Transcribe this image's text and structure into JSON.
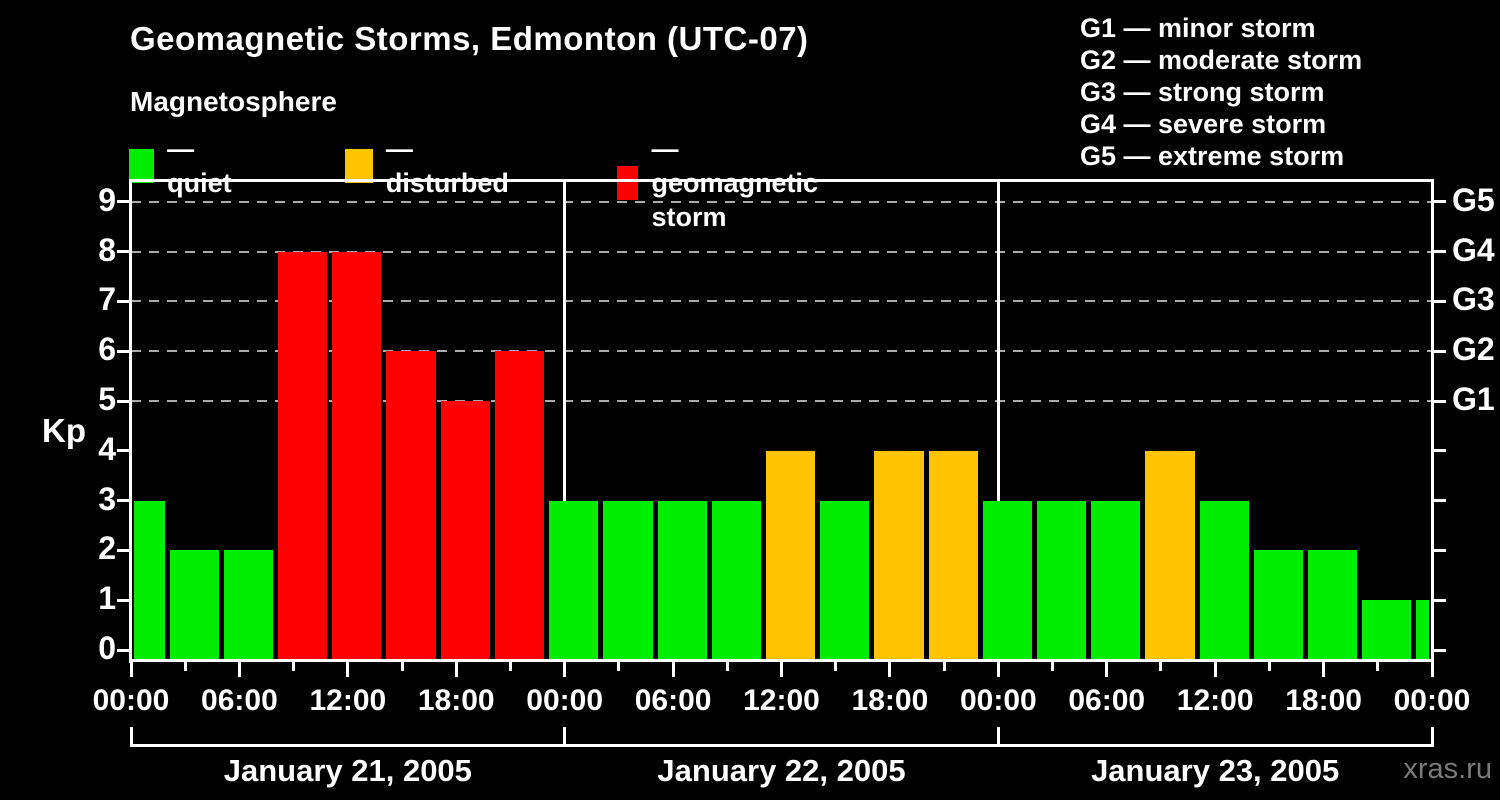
{
  "watermark": "xras.ru",
  "colors": {
    "quiet": "#00ec00",
    "disturbed": "#ffc400",
    "storm": "#ff0000",
    "axis": "#ffffff",
    "grid": "#aaaaaa",
    "background": "#000000",
    "watermark_color": "#7a7a7a"
  },
  "legend": {
    "items": [
      {
        "status": "quiet",
        "label": "— quiet"
      },
      {
        "status": "disturbed",
        "label": "— disturbed"
      },
      {
        "status": "storm",
        "label": "— geomagnetic storm"
      }
    ]
  },
  "g_legend": {
    "items": [
      {
        "code": "G1",
        "text": "G1 — minor storm"
      },
      {
        "code": "G2",
        "text": "G2 — moderate storm"
      },
      {
        "code": "G3",
        "text": "G3 — strong storm"
      },
      {
        "code": "G4",
        "text": "G4 — severe storm"
      },
      {
        "code": "G5",
        "text": "G5 — extreme storm"
      }
    ]
  },
  "chart_data": {
    "type": "bar",
    "title": "Geomagnetic Storms, Edmonton (UTC-07)",
    "subtitle": "Magnetosphere",
    "ylabel": "Kp",
    "ylim": [
      0,
      9
    ],
    "yticks": [
      0,
      1,
      2,
      3,
      4,
      5,
      6,
      7,
      8,
      9
    ],
    "grid": "dashed horizontal lines at Kp 5..9 only",
    "legend_position": "top",
    "x_hours_total": 72,
    "x_tick_step_hours": 3,
    "x_label_step_hours": 6,
    "x_labels": [
      "00:00",
      "06:00",
      "12:00",
      "18:00",
      "00:00",
      "06:00",
      "12:00",
      "18:00",
      "00:00",
      "06:00",
      "12:00",
      "18:00",
      "00:00"
    ],
    "day_boundaries_hours": [
      24,
      48
    ],
    "days": [
      {
        "label": "January 21, 2005"
      },
      {
        "label": "January 22, 2005"
      },
      {
        "label": "January 23, 2005"
      }
    ],
    "g_scale": [
      {
        "code": "G1",
        "kp": 5
      },
      {
        "code": "G2",
        "kp": 6
      },
      {
        "code": "G3",
        "kp": 7
      },
      {
        "code": "G4",
        "kp": 8
      },
      {
        "code": "G5",
        "kp": 9
      }
    ],
    "bars": [
      {
        "start_hour": -1,
        "duration_hours": 3,
        "kp": 3,
        "status": "quiet"
      },
      {
        "start_hour": 2,
        "duration_hours": 3,
        "kp": 2,
        "status": "quiet"
      },
      {
        "start_hour": 5,
        "duration_hours": 3,
        "kp": 2,
        "status": "quiet"
      },
      {
        "start_hour": 8,
        "duration_hours": 3,
        "kp": 8,
        "status": "storm"
      },
      {
        "start_hour": 11,
        "duration_hours": 3,
        "kp": 8,
        "status": "storm"
      },
      {
        "start_hour": 14,
        "duration_hours": 3,
        "kp": 6,
        "status": "storm"
      },
      {
        "start_hour": 17,
        "duration_hours": 3,
        "kp": 5,
        "status": "storm"
      },
      {
        "start_hour": 20,
        "duration_hours": 3,
        "kp": 6,
        "status": "storm"
      },
      {
        "start_hour": 23,
        "duration_hours": 3,
        "kp": 3,
        "status": "quiet"
      },
      {
        "start_hour": 26,
        "duration_hours": 3,
        "kp": 3,
        "status": "quiet"
      },
      {
        "start_hour": 29,
        "duration_hours": 3,
        "kp": 3,
        "status": "quiet"
      },
      {
        "start_hour": 32,
        "duration_hours": 3,
        "kp": 3,
        "status": "quiet"
      },
      {
        "start_hour": 35,
        "duration_hours": 3,
        "kp": 4,
        "status": "disturbed"
      },
      {
        "start_hour": 38,
        "duration_hours": 3,
        "kp": 3,
        "status": "quiet"
      },
      {
        "start_hour": 41,
        "duration_hours": 3,
        "kp": 4,
        "status": "disturbed"
      },
      {
        "start_hour": 44,
        "duration_hours": 3,
        "kp": 4,
        "status": "disturbed"
      },
      {
        "start_hour": 47,
        "duration_hours": 3,
        "kp": 3,
        "status": "quiet"
      },
      {
        "start_hour": 50,
        "duration_hours": 3,
        "kp": 3,
        "status": "quiet"
      },
      {
        "start_hour": 53,
        "duration_hours": 3,
        "kp": 3,
        "status": "quiet"
      },
      {
        "start_hour": 56,
        "duration_hours": 3,
        "kp": 4,
        "status": "disturbed"
      },
      {
        "start_hour": 59,
        "duration_hours": 3,
        "kp": 3,
        "status": "quiet"
      },
      {
        "start_hour": 62,
        "duration_hours": 3,
        "kp": 2,
        "status": "quiet"
      },
      {
        "start_hour": 65,
        "duration_hours": 3,
        "kp": 2,
        "status": "quiet"
      },
      {
        "start_hour": 68,
        "duration_hours": 3,
        "kp": 1,
        "status": "quiet"
      },
      {
        "start_hour": 71,
        "duration_hours": 3,
        "kp": 1,
        "status": "quiet"
      }
    ]
  }
}
